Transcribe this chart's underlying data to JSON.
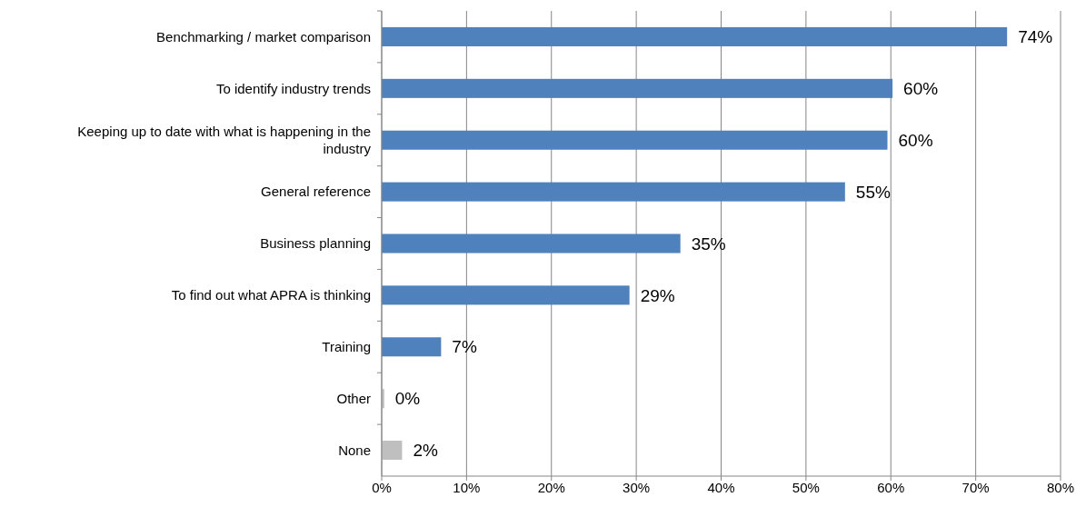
{
  "chart_data": {
    "type": "bar",
    "orientation": "horizontal",
    "categories": [
      "Benchmarking / market comparison",
      "To identify industry trends",
      "Keeping up to date with what is happening in the industry",
      "General reference",
      "Business planning",
      "To find out what APRA is thinking",
      "Training",
      "Other",
      "None"
    ],
    "values": [
      73.7,
      60.2,
      59.6,
      54.6,
      35.2,
      29.2,
      7.0,
      0.3,
      2.4
    ],
    "value_labels": [
      "74%",
      "60%",
      "60%",
      "55%",
      "35%",
      "29%",
      "7%",
      "0%",
      "2%"
    ],
    "colors": [
      "#4f81bd",
      "#4f81bd",
      "#4f81bd",
      "#4f81bd",
      "#4f81bd",
      "#4f81bd",
      "#4f81bd",
      "#bfbfbf",
      "#bfbfbf"
    ],
    "xlim": [
      0,
      80
    ],
    "xticks": [
      {
        "value": 0,
        "label": "0%"
      },
      {
        "value": 10,
        "label": "10%"
      },
      {
        "value": 20,
        "label": "20%"
      },
      {
        "value": 30,
        "label": "30%"
      },
      {
        "value": 40,
        "label": "40%"
      },
      {
        "value": 50,
        "label": "50%"
      },
      {
        "value": 60,
        "label": "60%"
      },
      {
        "value": 70,
        "label": "70%"
      },
      {
        "value": 80,
        "label": "80%"
      }
    ],
    "grid": "x"
  }
}
